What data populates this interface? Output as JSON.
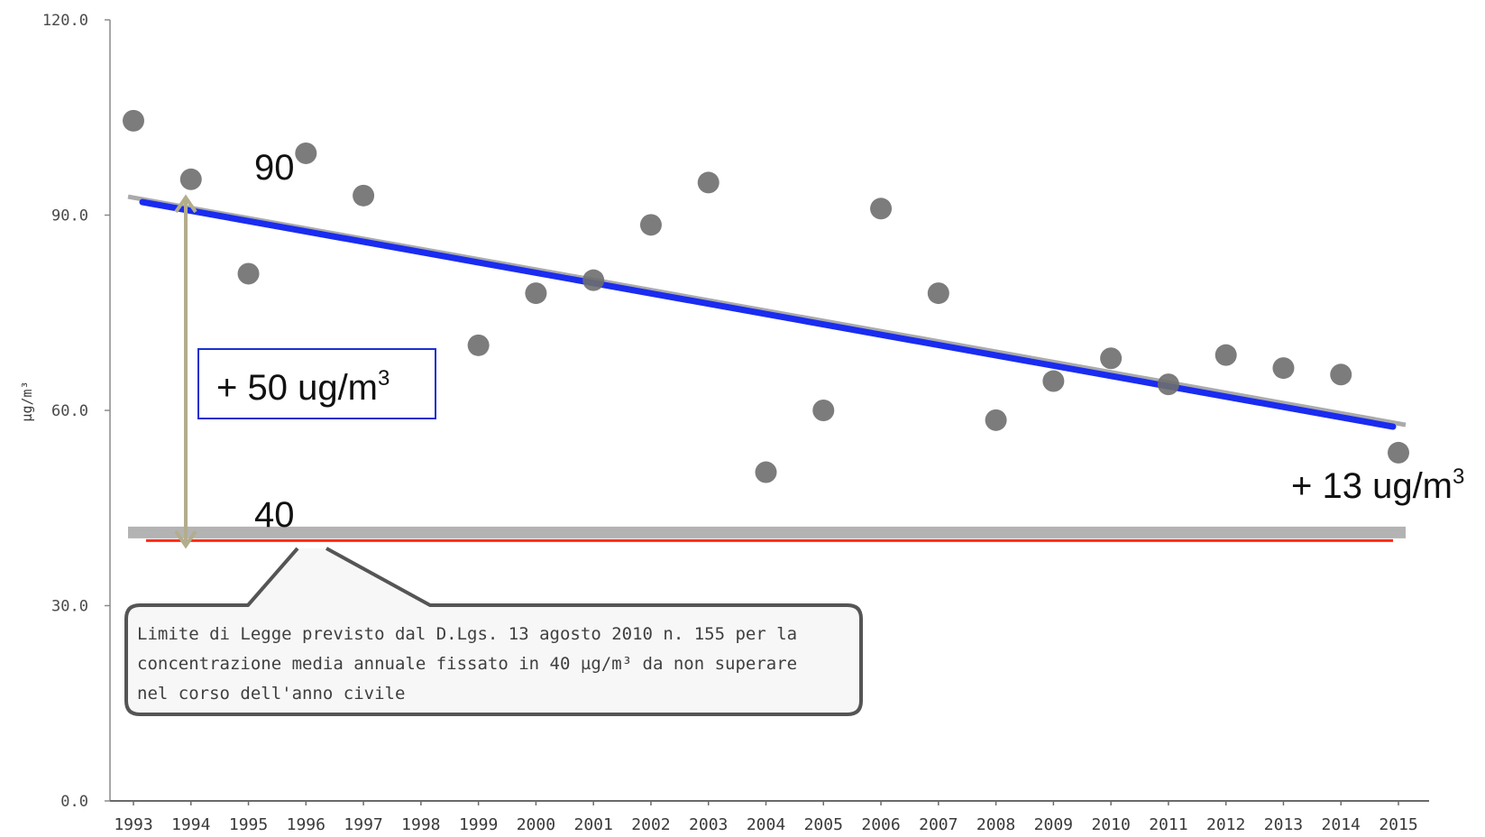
{
  "chart_data": {
    "type": "scatter",
    "title": "",
    "xlabel": "",
    "ylabel": "µg/m³",
    "ylim": [
      0,
      120
    ],
    "yticks": [
      "120.0",
      "90.0",
      "60.0",
      "30.0",
      "0.0"
    ],
    "ytick_values": [
      120,
      90,
      60,
      30,
      0
    ],
    "categories": [
      "1993",
      "1994",
      "1995",
      "1996",
      "1997",
      "1998",
      "1999",
      "2000",
      "2001",
      "2002",
      "2003",
      "2004",
      "2005",
      "2006",
      "2007",
      "2008",
      "2009",
      "2010",
      "2011",
      "2012",
      "2013",
      "2014",
      "2015"
    ],
    "series": [
      {
        "points": [
          {
            "x": "1993",
            "y": 104.5
          },
          {
            "x": "1994",
            "y": 95.5
          },
          {
            "x": "1995",
            "y": 81
          },
          {
            "x": "1996",
            "y": 99.5
          },
          {
            "x": "1997",
            "y": 93
          },
          {
            "x": "1999",
            "y": 70
          },
          {
            "x": "2000",
            "y": 78
          },
          {
            "x": "2001",
            "y": 80
          },
          {
            "x": "2002",
            "y": 88.5
          },
          {
            "x": "2003",
            "y": 95
          },
          {
            "x": "2004",
            "y": 50.5
          },
          {
            "x": "2005",
            "y": 60
          },
          {
            "x": "2006",
            "y": 91
          },
          {
            "x": "2007",
            "y": 78
          },
          {
            "x": "2008",
            "y": 58.5
          },
          {
            "x": "2009",
            "y": 64.5
          },
          {
            "x": "2010",
            "y": 68
          },
          {
            "x": "2011",
            "y": 64
          },
          {
            "x": "2012",
            "y": 68.5
          },
          {
            "x": "2013",
            "y": 66.5
          },
          {
            "x": "2014",
            "y": 65.5
          },
          {
            "x": "2015",
            "y": 53.5
          }
        ]
      }
    ],
    "trend_line": {
      "from": {
        "x": "1993",
        "y": 92
      },
      "to": {
        "x": "2015",
        "y": 57.5
      }
    },
    "limit_value": 40,
    "annotations": {
      "label_90": "90",
      "label_40": "40",
      "diff_prefix": "+ 50 ug/m",
      "diff_sup": "3",
      "end_prefix": "+ 13 ug/m",
      "end_sup": "3",
      "note_lines": [
        "Limite di Legge  previsto dal D.Lgs. 13 agosto 2010 n. 155 per la",
        "concentrazione media annuale fissato in 40 µg/m³ da non superare",
        "nel corso dell'anno civile"
      ]
    },
    "colors": {
      "points": "#6e6e6e",
      "trend": "#1a2cf0",
      "limit": "#ff2a14",
      "arrow": "#b3ad8c",
      "box": "#1b2fd0"
    },
    "grid": false,
    "legend": "none"
  }
}
